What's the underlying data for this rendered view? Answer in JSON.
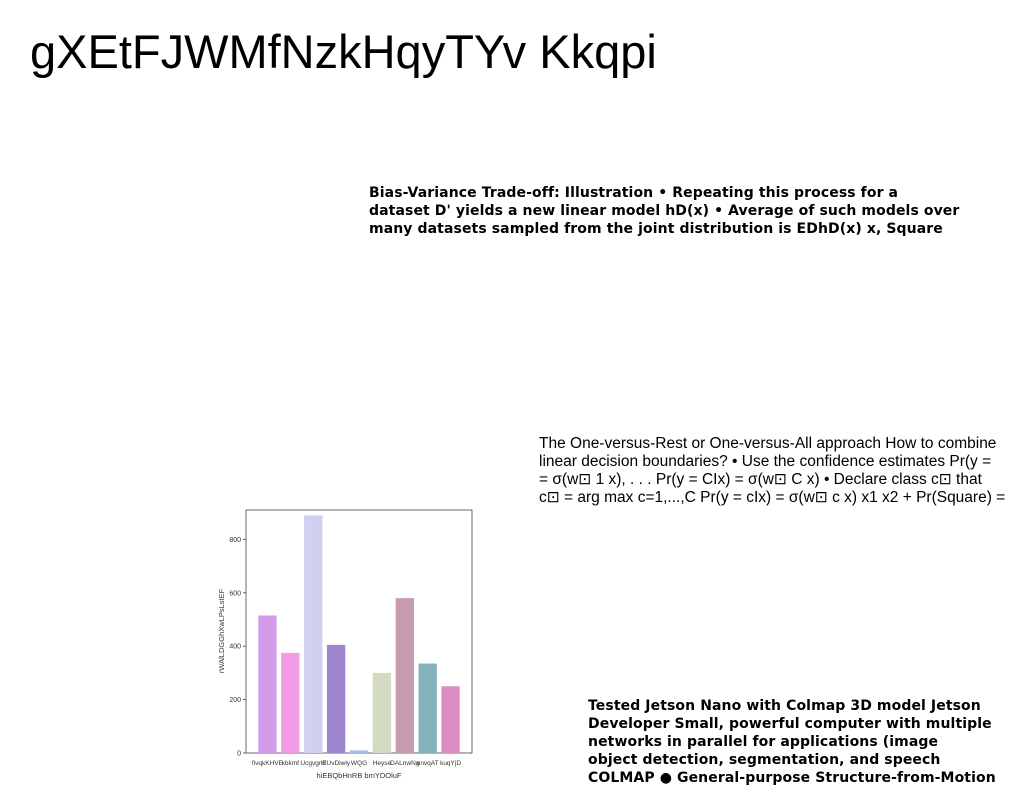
{
  "title": "gXEtFJWMfNzkHqyTYv Kkqpi",
  "block1": {
    "lines": [
      "Bias-Variance Trade-off: Illustration • Repeating this process for a",
      "dataset D' yields a new linear model hD(x) • Average of such models over",
      "many datasets sampled from the joint distribution is EDhD(x) x, Square"
    ]
  },
  "block2": {
    "lines": [
      "The One-versus-Rest or One-versus-All approach How to combine",
      "linear decision boundaries? • Use the confidence estimates Pr(y =",
      "= σ(w⊡ 1 x), . . . Pr(y = CIx) = σ(w⊡ C x) • Declare class c⊡ that",
      "c⊡ = arg max c=1,...,C Pr(y = cIx) = σ(w⊡ c x) x1 x2 + Pr(Square) ="
    ]
  },
  "block3": {
    "lines": [
      "Tested Jetson Nano with Colmap 3D model Jetson",
      "Developer Small, powerful computer with multiple",
      "networks in parallel for applications (image",
      "object detection, segmentation, and speech",
      "COLMAP ● General-purpose Structure-from-Motion"
    ]
  },
  "chart_data": {
    "type": "bar",
    "categories": [
      "fivqkKHVE",
      "kbkmf",
      "Ucgvgrkt",
      "EUvDiwly",
      "WQG",
      "Heyse",
      "DALnwNg",
      "unvqAT",
      "kuqYjD"
    ],
    "values": [
      515,
      375,
      890,
      405,
      10,
      300,
      580,
      335,
      250
    ],
    "colors": [
      "#d39be8",
      "#f39ce6",
      "#d0d0f0",
      "#9d85d0",
      "#a9bde8",
      "#d3dcc2",
      "#c89bb0",
      "#83b2ba",
      "#dc8ec3"
    ],
    "xlabel": "hiEBQbHnRB bmYDOluF",
    "ylabel": "rWAlLDGGhXwLPsLstEF",
    "yticks": [
      "0",
      "200",
      "400",
      "600",
      "800"
    ],
    "ylim": [
      0,
      910
    ]
  }
}
